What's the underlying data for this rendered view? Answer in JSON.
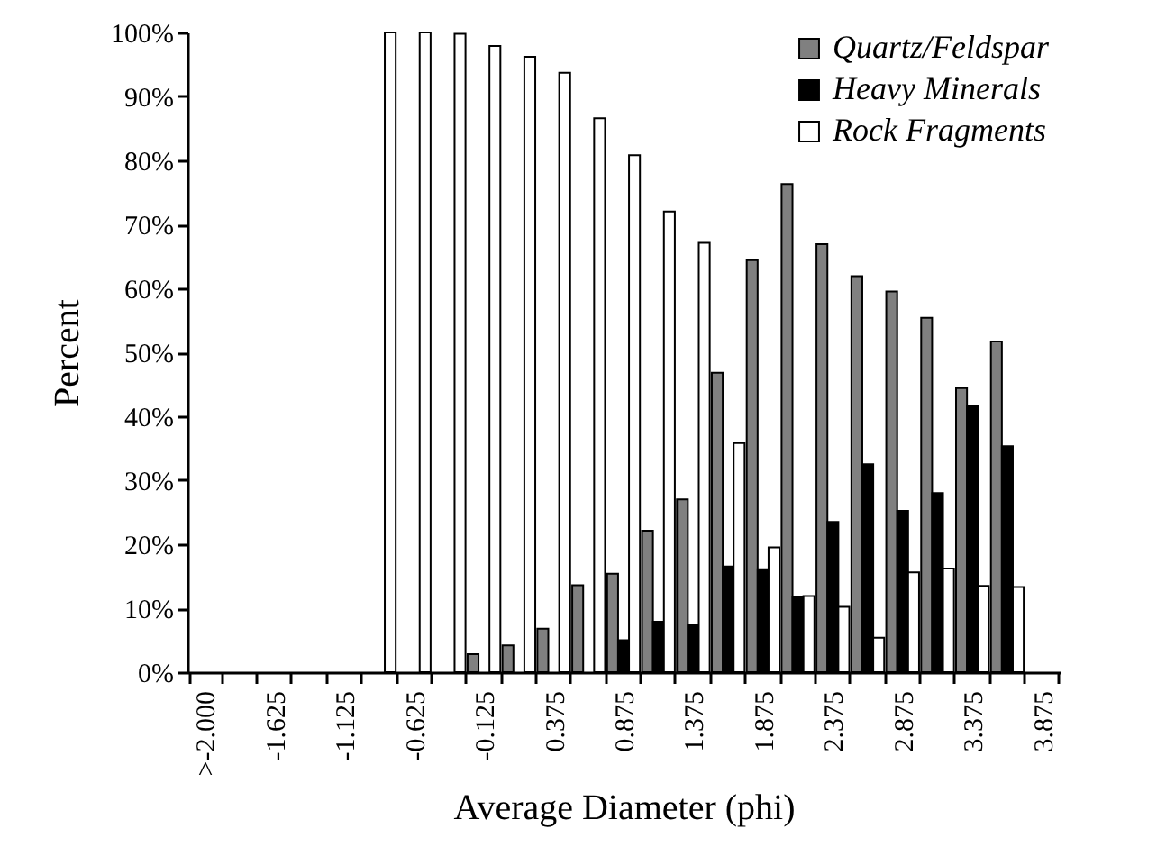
{
  "chart_data": {
    "type": "bar",
    "xlabel": "Average Diameter (phi)",
    "ylabel": "Percent",
    "categories": [
      ">-2.000",
      null,
      "-1.625",
      null,
      "-1.125",
      null,
      "-0.625",
      null,
      "-0.125",
      null,
      "0.375",
      null,
      "0.875",
      null,
      "1.375",
      null,
      "1.875",
      null,
      "2.375",
      null,
      "2.875",
      null,
      "3.375",
      null,
      "3.875"
    ],
    "series": [
      {
        "name": "Quartz/Feldspar",
        "color": "#808080",
        "values": [
          null,
          null,
          null,
          null,
          null,
          null,
          null,
          null,
          2.8,
          4.2,
          6.8,
          13.6,
          15.4,
          22.1,
          27.0,
          46.8,
          64.4,
          76.3,
          66.9,
          61.9,
          59.5,
          55.4,
          44.4,
          51.7,
          null
        ]
      },
      {
        "name": "Heavy Minerals",
        "color": "#000000",
        "values": [
          null,
          null,
          null,
          null,
          null,
          null,
          null,
          null,
          null,
          null,
          null,
          null,
          5.0,
          7.9,
          7.4,
          16.5,
          16.1,
          11.8,
          23.5,
          32.5,
          25.2,
          28.0,
          41.6,
          35.3,
          null
        ]
      },
      {
        "name": "Rock Fragments",
        "color": "#ffffff",
        "values": [
          null,
          null,
          null,
          null,
          null,
          100,
          100,
          99.8,
          97.9,
          96.2,
          93.7,
          86.6,
          80.8,
          72.0,
          67.1,
          35.8,
          19.5,
          11.9,
          10.2,
          5.4,
          15.6,
          16.2,
          13.5,
          13.3,
          null
        ]
      }
    ],
    "ylim": [
      0,
      100
    ],
    "yticks": [
      {
        "value": 0,
        "label": "0%"
      },
      {
        "value": 10,
        "label": "10%"
      },
      {
        "value": 20,
        "label": "20%"
      },
      {
        "value": 30,
        "label": "30%"
      },
      {
        "value": 40,
        "label": "40%"
      },
      {
        "value": 50,
        "label": "50%"
      },
      {
        "value": 60,
        "label": "60%"
      },
      {
        "value": 70,
        "label": "70%"
      },
      {
        "value": 80,
        "label": "80%"
      },
      {
        "value": 90,
        "label": "90%"
      },
      {
        "value": 100,
        "label": "100%"
      }
    ],
    "grid": false,
    "legend": "top right"
  }
}
